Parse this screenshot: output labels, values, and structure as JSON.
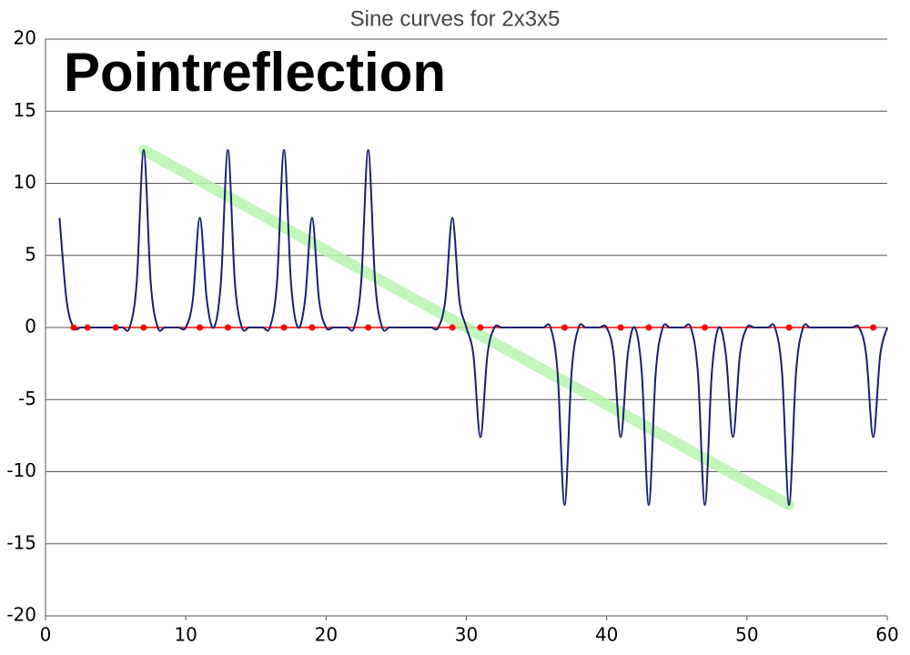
{
  "chart_data": {
    "type": "line",
    "title": "Sine curves for 2x3x5",
    "annotation": "Pointreflection",
    "x": [
      1,
      1.5,
      2,
      2.5,
      3,
      3.5,
      4,
      4.5,
      5,
      5.5,
      6,
      6.5,
      7,
      7.5,
      8,
      8.5,
      9,
      9.5,
      10,
      10.5,
      11,
      11.5,
      12,
      12.5,
      13,
      13.5,
      14,
      14.5,
      15,
      15.5,
      16,
      16.5,
      17,
      17.5,
      18,
      18.5,
      19,
      19.5,
      20,
      20.5,
      21,
      21.5,
      22,
      22.5,
      23,
      23.5,
      24,
      24.5,
      25,
      25.5,
      26,
      26.5,
      27,
      27.5,
      28,
      28.5,
      29,
      29.5,
      30,
      30.5,
      31,
      31.5,
      32,
      32.5,
      33,
      33.5,
      34,
      34.5,
      35,
      35.5,
      36,
      36.5,
      37,
      37.5,
      38,
      38.5,
      39,
      39.5,
      40,
      40.5,
      41,
      41.5,
      42,
      42.5,
      43,
      43.5,
      44,
      44.5,
      45,
      45.5,
      46,
      46.5,
      47,
      47.5,
      48,
      48.5,
      49,
      49.5,
      50,
      50.5,
      51,
      51.5,
      52,
      52.5,
      53,
      53.5,
      54,
      54.5,
      55,
      55.5,
      56,
      56.5,
      57,
      57.5,
      58,
      58.5,
      59,
      59.5,
      60
    ],
    "series": [
      {
        "color": "#1a1f6e",
        "values": [
          7.6,
          1.9,
          0,
          0,
          0,
          0,
          0,
          0,
          0,
          0,
          0,
          3.1,
          12.3,
          3.1,
          0,
          0,
          0,
          0,
          0,
          1.9,
          7.6,
          1.9,
          0,
          3.1,
          12.3,
          3.1,
          0,
          0,
          0,
          0,
          0,
          3.1,
          12.3,
          3.1,
          0,
          1.9,
          7.6,
          1.9,
          0,
          0,
          0,
          0,
          0,
          3.1,
          12.3,
          3.1,
          0,
          0,
          0,
          0,
          0,
          0,
          0,
          0,
          0,
          1.9,
          7.6,
          1.9,
          0,
          -1.9,
          -7.6,
          -1.9,
          0,
          0,
          0,
          0,
          0,
          0,
          0,
          0,
          0,
          -3.1,
          -12.3,
          -3.1,
          0,
          0,
          0,
          0,
          0,
          -1.9,
          -7.6,
          -1.9,
          0,
          -3.1,
          -12.3,
          -3.1,
          0,
          0,
          0,
          0,
          0,
          -3.1,
          -12.3,
          -3.1,
          0,
          -1.9,
          -7.6,
          -1.9,
          0,
          0,
          0,
          0,
          0,
          -3.1,
          -12.3,
          -3.1,
          0,
          0,
          0,
          0,
          0,
          0,
          0,
          0,
          0,
          -1.9,
          -7.6,
          -1.9,
          0
        ]
      }
    ],
    "points": {
      "color": "#ff0000",
      "x": [
        2,
        3,
        5,
        7,
        11,
        13,
        17,
        19,
        23,
        29,
        31,
        37,
        41,
        43,
        47,
        53,
        59
      ],
      "values": [
        0,
        0,
        0,
        0,
        0,
        0,
        0,
        0,
        0,
        0,
        0,
        0,
        0,
        0,
        0,
        0,
        0
      ]
    },
    "reflection_line": {
      "color": "#b8f5b0",
      "x": [
        7,
        53
      ],
      "values": [
        12.3,
        -12.3
      ]
    },
    "xlim": [
      0,
      60
    ],
    "ylim": [
      -20,
      20
    ],
    "xticks": [
      0,
      10,
      20,
      30,
      40,
      50,
      60
    ],
    "yticks": [
      -20,
      -15,
      -10,
      -5,
      0,
      5,
      10,
      15,
      20
    ],
    "grid": true
  }
}
